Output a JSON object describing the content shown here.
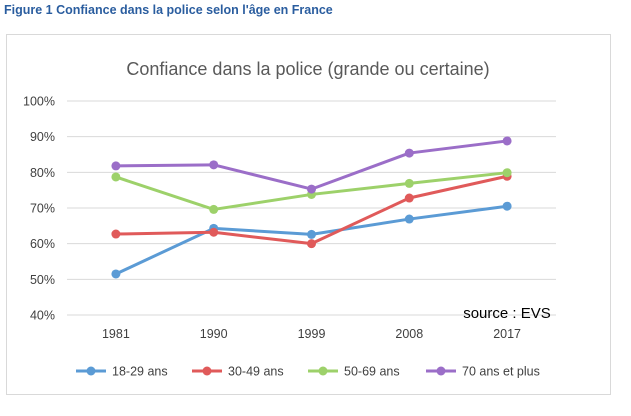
{
  "figure": {
    "caption": "Figure 1 Confiance dans la police selon l'âge en France"
  },
  "chart_data": {
    "type": "line",
    "title": "Confiance dans la police (grande ou certaine)",
    "xlabel": "",
    "ylabel": "",
    "categories": [
      "1981",
      "1990",
      "1999",
      "2008",
      "2017"
    ],
    "ylim": [
      40,
      100
    ],
    "yticks": [
      40,
      50,
      60,
      70,
      80,
      90,
      100
    ],
    "ytick_labels": [
      "40%",
      "50%",
      "60%",
      "70%",
      "80%",
      "90%",
      "100%"
    ],
    "grid": true,
    "legend_position": "bottom",
    "annotation": "source : EVS",
    "series": [
      {
        "name": "18-29 ans",
        "color": "#5b9bd5",
        "values": [
          51.5,
          64.3,
          62.6,
          66.9,
          70.5
        ]
      },
      {
        "name": "30-49 ans",
        "color": "#e05a5a",
        "values": [
          62.7,
          63.2,
          60.0,
          72.8,
          78.9
        ]
      },
      {
        "name": "50-69 ans",
        "color": "#9dd16a",
        "values": [
          78.7,
          69.6,
          73.8,
          76.9,
          79.9
        ]
      },
      {
        "name": "70 ans et plus",
        "color": "#9b6ec8",
        "values": [
          81.8,
          82.1,
          75.3,
          85.4,
          88.8
        ]
      }
    ]
  }
}
